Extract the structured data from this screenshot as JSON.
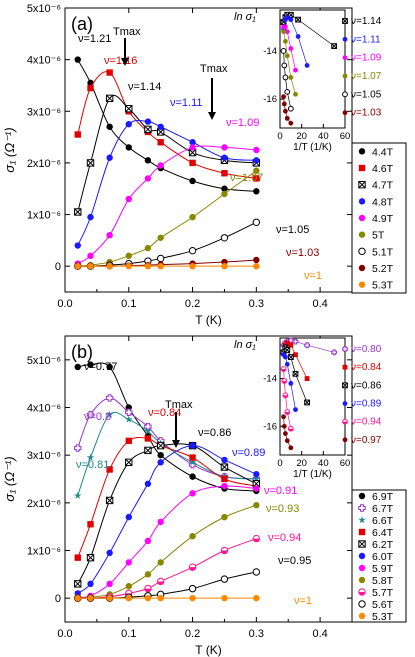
{
  "figure": {
    "panels": [
      {
        "panel_label": "(a)",
        "xlabel": "T (K)",
        "ylabel": "σ₁ (Ω⁻¹)",
        "tmax_label": "Tmax",
        "yticks": [
          "0",
          "1x10⁻⁶",
          "2x10⁻⁶",
          "3x10⁻⁶",
          "4x10⁻⁶",
          "5x10⁻⁶"
        ],
        "xticks": [
          "0.0",
          "0.1",
          "0.2",
          "0.3",
          "0.4"
        ],
        "inset": {
          "ylabel": "ln σ₁",
          "xlabel": "1/T (1/K)",
          "yticks": [
            "-14",
            "-16"
          ],
          "xticks": [
            "0",
            "20",
            "40",
            "60"
          ],
          "labels": [
            "ν=1.14",
            "ν=1.11",
            "ν=1.09",
            "ν=1.07",
            "ν=1.05",
            "ν=1.03"
          ]
        },
        "nu_labels": [
          "ν=1.21",
          "ν=1.16",
          "ν=1.14",
          "ν=1.11",
          "ν=1.09",
          "ν=1.07",
          "ν=1.05",
          "ν=1.03",
          "ν=1"
        ]
      },
      {
        "panel_label": "(b)",
        "xlabel": "T (K)",
        "ylabel": "σ₁ (Ω⁻¹)",
        "tmax_label": "Tmax",
        "yticks": [
          "0",
          "1x10⁻⁶",
          "2x10⁻⁶",
          "3x10⁻⁶",
          "4x10⁻⁶",
          "5x10⁻⁶"
        ],
        "xticks": [
          "0.0",
          "0.1",
          "0.2",
          "0.3",
          "0.4"
        ],
        "inset": {
          "ylabel": "ln σ₁",
          "xlabel": "1/T (1/K)",
          "yticks": [
            "-14",
            "-16"
          ],
          "xticks": [
            "0",
            "20",
            "40",
            "60"
          ],
          "labels": [
            "ν=0.80",
            "ν=0.84",
            "ν=0.86",
            "ν=0.89",
            "ν=0.94",
            "ν=0.97"
          ]
        },
        "nu_labels": [
          "ν=0.77",
          "ν=0.8",
          "ν=0.81",
          "ν=0.84",
          "ν=0.86",
          "ν=0.89",
          "ν=0.91",
          "ν=0.93",
          "ν=0.94",
          "ν=0.95",
          "ν=1"
        ]
      }
    ]
  },
  "chart_data": [
    {
      "type": "scatter",
      "title": "",
      "xlabel": "T (K)",
      "ylabel": "σ₁ (Ω⁻¹)",
      "xlim": [
        0.0,
        0.45
      ],
      "ylim": [
        -5e-07,
        5e-06
      ],
      "x": [
        0.02,
        0.04,
        0.07,
        0.1,
        0.13,
        0.15,
        0.2,
        0.25,
        0.3
      ],
      "legend_position": "bottom-right",
      "series": [
        {
          "name": "4.4T",
          "color": "#000000",
          "marker": "circle-filled",
          "nu": "ν=1.21",
          "values": [
            4e-06,
            3.55e-06,
            2.7e-06,
            2.3e-06,
            2.05e-06,
            1.9e-06,
            1.65e-06,
            1.5e-06,
            1.45e-06
          ]
        },
        {
          "name": "4.6T",
          "color": "#e00000",
          "marker": "square-filled",
          "nu": "ν=1.16",
          "values": [
            2.55e-06,
            3.45e-06,
            3.75e-06,
            3e-06,
            2.6e-06,
            2.4e-06,
            2e-06,
            1.8e-06,
            1.7e-06
          ]
        },
        {
          "name": "4.7T",
          "color": "#000000",
          "marker": "square-x",
          "nu": "ν=1.14",
          "values": [
            1.05e-06,
            2e-06,
            3.25e-06,
            3.05e-06,
            2.65e-06,
            2.6e-06,
            2.2e-06,
            2.05e-06,
            2e-06
          ]
        },
        {
          "name": "4.8T",
          "color": "#1a1aff",
          "marker": "circle-filled",
          "nu": "ν=1.11",
          "values": [
            4e-07,
            9.5e-07,
            2.1e-06,
            2.75e-06,
            2.8e-06,
            2.7e-06,
            2.4e-06,
            2.1e-06,
            2.05e-06
          ]
        },
        {
          "name": "4.9T",
          "color": "#ff00ff",
          "marker": "circle-filled",
          "nu": "ν=1.09",
          "values": [
            5e-08,
            2e-07,
            6e-07,
            1.3e-06,
            1.7e-06,
            1.95e-06,
            2.3e-06,
            2.3e-06,
            2.25e-06
          ]
        },
        {
          "name": "5T",
          "color": "#888800",
          "marker": "circle-filled",
          "nu": "ν=1.07",
          "values": [
            0.0,
            2e-08,
            8e-08,
            2e-07,
            3.5e-07,
            5.5e-07,
            9.5e-07,
            1.4e-06,
            1.85e-06
          ]
        },
        {
          "name": "5.1T",
          "color": "#000000",
          "marker": "circle-open",
          "nu": "ν=1.05",
          "values": [
            0.0,
            0.0,
            2e-08,
            5e-08,
            1e-07,
            1.5e-07,
            3e-07,
            5.5e-07,
            8.5e-07
          ]
        },
        {
          "name": "5.2T",
          "color": "#800000",
          "marker": "circle-filled",
          "nu": "ν=1.03",
          "values": [
            0.0,
            0.0,
            0.0,
            1e-08,
            2e-08,
            3e-08,
            5e-08,
            8e-08,
            1.2e-07
          ]
        },
        {
          "name": "5.3T",
          "color": "#ff8800",
          "marker": "circle-filled",
          "nu": "ν=1",
          "values": [
            0.0,
            0.0,
            0.0,
            0.0,
            0.0,
            0.0,
            0.0,
            0.0,
            0.0
          ]
        }
      ],
      "inset": {
        "type": "scatter",
        "xlabel": "1/T (1/K)",
        "ylabel": "ln σ₁",
        "xlim": [
          0,
          60
        ],
        "ylim": [
          -17.2,
          -12.3
        ],
        "series": [
          {
            "name": "ν=1.14",
            "color": "#000000",
            "marker": "square-x",
            "x": [
              3.3,
              5,
              6.7,
              10,
              16.7,
              50
            ],
            "y": [
              -12.8,
              -12.6,
              -12.5,
              -12.5,
              -12.7,
              -13.8
            ]
          },
          {
            "name": "ν=1.11",
            "color": "#1a1aff",
            "marker": "circle-filled",
            "x": [
              3.3,
              5,
              6.7,
              10,
              16.7,
              25
            ],
            "y": [
              -13.1,
              -12.7,
              -12.6,
              -12.7,
              -13.4,
              -14.6
            ]
          },
          {
            "name": "ν=1.09",
            "color": "#ff00ff",
            "marker": "circle-filled",
            "x": [
              3.3,
              5,
              6.7,
              10,
              14.3
            ],
            "y": [
              -13.0,
              -13.0,
              -13.2,
              -13.9,
              -14.8
            ]
          },
          {
            "name": "ν=1.07",
            "color": "#888800",
            "marker": "circle-filled",
            "x": [
              3.3,
              5,
              6.7,
              10,
              14.3
            ],
            "y": [
              -13.2,
              -13.6,
              -14.2,
              -15.1,
              -15.8
            ]
          },
          {
            "name": "ν=1.05",
            "color": "#000000",
            "marker": "circle-open",
            "x": [
              3.3,
              4,
              5,
              6.7,
              10
            ],
            "y": [
              -14.0,
              -14.6,
              -15.1,
              -15.7,
              -16.4
            ]
          },
          {
            "name": "ν=1.03",
            "color": "#800000",
            "marker": "circle-filled",
            "x": [
              3.3,
              4,
              5,
              6.7,
              10
            ],
            "y": [
              -15.9,
              -16.2,
              -16.5,
              -16.8,
              -17.0
            ]
          }
        ]
      }
    },
    {
      "type": "scatter",
      "title": "",
      "xlabel": "T (K)",
      "ylabel": "σ₁ (Ω⁻¹)",
      "xlim": [
        0.0,
        0.45
      ],
      "ylim": [
        -5e-07,
        5.5e-06
      ],
      "x": [
        0.02,
        0.04,
        0.07,
        0.1,
        0.13,
        0.15,
        0.2,
        0.25,
        0.3
      ],
      "legend_position": "bottom-right",
      "series": [
        {
          "name": "6.9T",
          "color": "#000000",
          "marker": "circle-filled",
          "nu": "ν=0.77",
          "values": [
            4.85e-06,
            4.9e-06,
            4.85e-06,
            4e-06,
            3.4e-06,
            3e-06,
            2.55e-06,
            2.3e-06,
            2.25e-06
          ]
        },
        {
          "name": "6.7T",
          "color": "#9933cc",
          "marker": "cross-open",
          "nu": "ν=0.8",
          "values": [
            3.15e-06,
            3.85e-06,
            4.2e-06,
            3.9e-06,
            3.6e-06,
            3.3e-06,
            2.8e-06,
            2.55e-06,
            2.5e-06
          ]
        },
        {
          "name": "6.6T",
          "color": "#1a8a8a",
          "marker": "star",
          "nu": "ν=0.81",
          "values": [
            2.15e-06,
            2.95e-06,
            3.85e-06,
            3.75e-06,
            3.5e-06,
            3.25e-06,
            2.85e-06,
            2.55e-06,
            2.5e-06
          ]
        },
        {
          "name": "6.4T",
          "color": "#e00000",
          "marker": "square-filled",
          "nu": "ν=0.84",
          "values": [
            8.5e-07,
            1.55e-06,
            2.7e-06,
            3.3e-06,
            3.35e-06,
            3.2e-06,
            2.95e-06,
            2.5e-06,
            2.35e-06
          ]
        },
        {
          "name": "6.2T",
          "color": "#000000",
          "marker": "square-x",
          "nu": "ν=0.86",
          "values": [
            3e-07,
            8.5e-07,
            2.05e-06,
            2.85e-06,
            3.1e-06,
            3.2e-06,
            3.2e-06,
            2.75e-06,
            2.4e-06
          ]
        },
        {
          "name": "6.0T",
          "color": "#1a1aff",
          "marker": "circle-filled",
          "nu": "ν=0.89",
          "values": [
            1e-07,
            3e-07,
            9.5e-07,
            1.7e-06,
            2.4e-06,
            2.85e-06,
            3.2e-06,
            2.9e-06,
            2.6e-06
          ]
        },
        {
          "name": "5.9T",
          "color": "#ff00ff",
          "marker": "circle-filled",
          "nu": "ν=0.91",
          "values": [
            2e-08,
            5e-08,
            3e-07,
            7.5e-07,
            1.2e-06,
            1.6e-06,
            2.2e-06,
            2.35e-06,
            2.3e-06
          ]
        },
        {
          "name": "5.8T",
          "color": "#888800",
          "marker": "circle-filled",
          "nu": "ν=0.93",
          "values": [
            0.0,
            2e-08,
            8e-08,
            2.5e-07,
            5e-07,
            7.5e-07,
            1.3e-06,
            1.7e-06,
            1.95e-06
          ]
        },
        {
          "name": "5.7T",
          "color": "#ff1493",
          "marker": "circle-half",
          "nu": "ν=0.94",
          "values": [
            0.0,
            0.0,
            3e-08,
            1e-07,
            2e-07,
            3.5e-07,
            6.5e-07,
            1e-06,
            1.25e-06
          ]
        },
        {
          "name": "5.6T",
          "color": "#000000",
          "marker": "circle-open",
          "nu": "ν=0.95",
          "values": [
            0.0,
            0.0,
            0.0,
            2e-08,
            5e-08,
            8e-08,
            2e-07,
            4e-07,
            5.5e-07
          ]
        },
        {
          "name": "5.3T",
          "color": "#ff8800",
          "marker": "circle-filled",
          "nu": "ν=1",
          "values": [
            0.0,
            0.0,
            0.0,
            0.0,
            0.0,
            0.0,
            0.0,
            0.0,
            0.0
          ]
        }
      ],
      "inset": {
        "type": "scatter",
        "xlabel": "1/T (1/K)",
        "ylabel": "ln σ₁",
        "xlim": [
          0,
          60
        ],
        "ylim": [
          -17.2,
          -12.3
        ],
        "series": [
          {
            "name": "ν=0.80",
            "color": "#9933cc",
            "marker": "cross-open",
            "x": [
              3.3,
              5,
              6.7,
              10,
              14.3,
              25,
              50
            ],
            "y": [
              -12.6,
              -12.5,
              -12.45,
              -12.4,
              -12.45,
              -12.6,
              -12.9
            ]
          },
          {
            "name": "ν=0.84",
            "color": "#e00000",
            "marker": "square-filled",
            "x": [
              3.3,
              5,
              6.7,
              10,
              14.3,
              25
            ],
            "y": [
              -12.9,
              -12.6,
              -12.5,
              -12.6,
              -13.0,
              -14.0
            ]
          },
          {
            "name": "ν=0.86",
            "color": "#000000",
            "marker": "square-x",
            "x": [
              3.3,
              5,
              6.7,
              10,
              14.3,
              25
            ],
            "y": [
              -12.9,
              -12.7,
              -12.8,
              -13.1,
              -13.8,
              -15.0
            ]
          },
          {
            "name": "ν=0.89",
            "color": "#1a1aff",
            "marker": "circle-filled",
            "x": [
              3.3,
              5,
              6.7,
              10,
              14.3
            ],
            "y": [
              -13.0,
              -13.1,
              -13.4,
              -14.2,
              -15.3
            ]
          },
          {
            "name": "ν=0.94",
            "color": "#ff1493",
            "marker": "circle-half",
            "x": [
              3.3,
              4,
              5,
              6.7,
              10
            ],
            "y": [
              -13.6,
              -14.1,
              -14.7,
              -15.4,
              -16.1
            ]
          },
          {
            "name": "ν=0.97",
            "color": "#800000",
            "marker": "circle-filled",
            "x": [
              3.3,
              4,
              5,
              6.7,
              10
            ],
            "y": [
              -15.6,
              -16.0,
              -16.3,
              -16.6,
              -16.9
            ]
          }
        ]
      }
    }
  ]
}
